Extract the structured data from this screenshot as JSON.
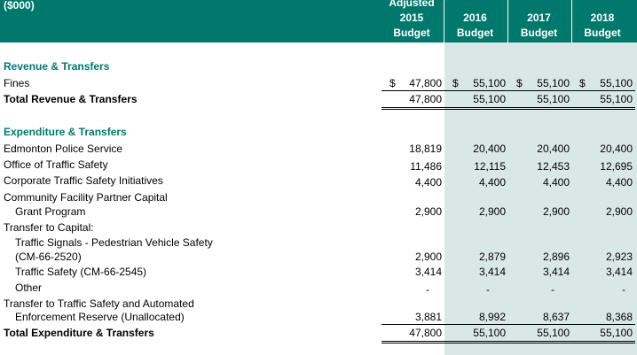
{
  "header": {
    "unit": "($000)",
    "columns": [
      {
        "line1": "Adjusted",
        "line2": "2015",
        "line3": "Budget"
      },
      {
        "line1": "",
        "line2": "2016",
        "line3": "Budget"
      },
      {
        "line1": "",
        "line2": "2017",
        "line3": "Budget"
      },
      {
        "line1": "",
        "line2": "2018",
        "line3": "Budget"
      }
    ]
  },
  "revenue": {
    "title": "Revenue & Transfers",
    "fines": {
      "label": "Fines",
      "currency": "$",
      "values": [
        "47,800",
        "55,100",
        "55,100",
        "55,100"
      ]
    },
    "total": {
      "label": "Total Revenue & Transfers",
      "values": [
        "47,800",
        "55,100",
        "55,100",
        "55,100"
      ]
    }
  },
  "expenditure": {
    "title": "Expenditure & Transfers",
    "rows": [
      {
        "label": "Edmonton Police Service",
        "values": [
          "18,819",
          "20,400",
          "20,400",
          "20,400"
        ]
      },
      {
        "label": "Office of Traffic Safety",
        "values": [
          "11,486",
          "12,115",
          "12,453",
          "12,695"
        ]
      },
      {
        "label": "Corporate Traffic Safety Initiatives",
        "values": [
          "4,400",
          "4,400",
          "4,400",
          "4,400"
        ]
      }
    ],
    "community": {
      "label1": "Community Facility Partner Capital",
      "label2": "Grant Program",
      "values": [
        "2,900",
        "2,900",
        "2,900",
        "2,900"
      ]
    },
    "transfer_capital": {
      "label": "Transfer to Capital:",
      "signals": {
        "label1": "Traffic Signals - Pedestrian Vehicle Safety",
        "label2": "(CM-66-2520)",
        "values": [
          "2,900",
          "2,879",
          "2,896",
          "2,923"
        ]
      },
      "safety": {
        "label": "Traffic Safety (CM-66-2545)",
        "values": [
          "3,414",
          "3,414",
          "3,414",
          "3,414"
        ]
      },
      "other": {
        "label": "Other",
        "values": [
          "-",
          "-",
          "-",
          "-"
        ]
      }
    },
    "reserve": {
      "label1": "Transfer to Traffic Safety and Automated",
      "label2": "Enforcement Reserve (Unallocated)",
      "values": [
        "3,881",
        "8,992",
        "8,637",
        "8,368"
      ]
    },
    "total": {
      "label": "Total Expenditure & Transfers",
      "values": [
        "47,800",
        "55,100",
        "55,100",
        "55,100"
      ]
    }
  }
}
